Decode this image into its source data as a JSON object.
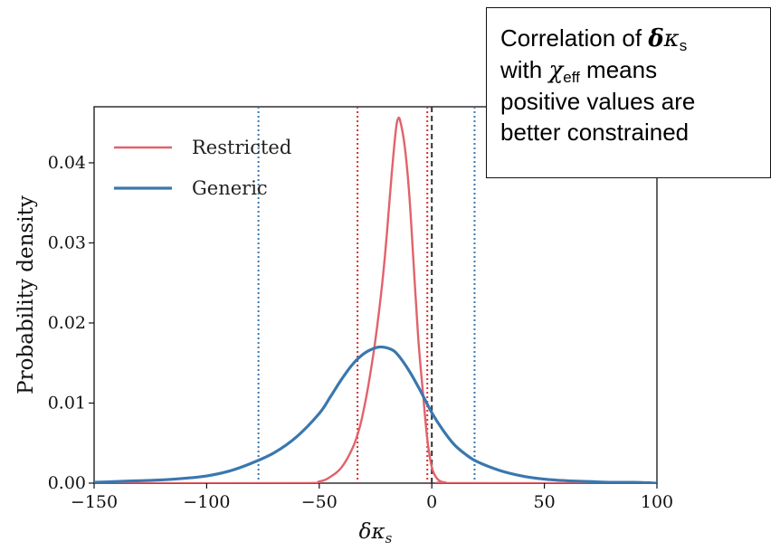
{
  "chart_data": {
    "type": "line",
    "xlabel": "δκ_s",
    "ylabel": "Probability density",
    "xlim": [
      -150,
      100
    ],
    "ylim": [
      0,
      0.047
    ],
    "x_ticks": [
      -150,
      -100,
      -50,
      0,
      50,
      100
    ],
    "x_tick_labels": [
      "−150",
      "−100",
      "−50",
      "0",
      "50",
      "100"
    ],
    "y_ticks": [
      0,
      0.01,
      0.02,
      0.03,
      0.04
    ],
    "y_tick_labels": [
      "0.00",
      "0.01",
      "0.02",
      "0.03",
      "0.04"
    ],
    "grid": false,
    "legend_position": "top-left",
    "colors": {
      "Restricted": "#e0636b",
      "Generic": "#3a77ae",
      "zero_line": "#333333"
    },
    "series": [
      {
        "name": "Restricted",
        "x": [
          -150,
          -60,
          -50,
          -45,
          -40,
          -35,
          -32,
          -30,
          -28,
          -25,
          -22,
          -20,
          -18,
          -16,
          -15,
          -14,
          -12,
          -10,
          -8,
          -6,
          -4,
          -2,
          0,
          2,
          4,
          6,
          10,
          100
        ],
        "y": [
          0,
          0,
          0.0002,
          0.0008,
          0.002,
          0.0045,
          0.007,
          0.0095,
          0.0125,
          0.018,
          0.025,
          0.031,
          0.038,
          0.044,
          0.0455,
          0.0452,
          0.042,
          0.036,
          0.027,
          0.018,
          0.0115,
          0.0055,
          0.002,
          0.0007,
          0.0002,
          0.0001,
          0,
          0
        ]
      },
      {
        "name": "Generic",
        "x": [
          -150,
          -140,
          -130,
          -120,
          -110,
          -100,
          -90,
          -80,
          -70,
          -60,
          -50,
          -45,
          -40,
          -35,
          -30,
          -25,
          -22,
          -18,
          -15,
          -10,
          -5,
          0,
          5,
          10,
          15,
          20,
          30,
          40,
          50,
          60,
          70,
          80,
          90,
          100
        ],
        "y": [
          0.0001,
          0.0002,
          0.0003,
          0.0004,
          0.0006,
          0.0009,
          0.0015,
          0.0025,
          0.0038,
          0.0058,
          0.0087,
          0.0108,
          0.013,
          0.0149,
          0.0162,
          0.0169,
          0.017,
          0.0167,
          0.016,
          0.014,
          0.0115,
          0.0088,
          0.0066,
          0.0048,
          0.0036,
          0.0027,
          0.0016,
          0.0009,
          0.0005,
          0.0003,
          0.0002,
          0.0001,
          0.0001,
          0
        ]
      }
    ],
    "vlines": [
      {
        "x": -77,
        "color": "#3a77ae",
        "style": "dotted"
      },
      {
        "x": 19,
        "color": "#3a77ae",
        "style": "dotted"
      },
      {
        "x": -33,
        "color": "#d6302f",
        "style": "dotted"
      },
      {
        "x": -2,
        "color": "#d6302f",
        "style": "dotted"
      },
      {
        "x": 0,
        "color": "#333333",
        "style": "dashed"
      }
    ]
  },
  "annotation": {
    "line1_text": "Correlation of ",
    "line1_bold_symbol": "δ",
    "line1_symbol": "κ",
    "line1_sub": "s",
    "line2_text": "with ",
    "line2_symbol": "χ",
    "line2_sub": "eff",
    "line2_rest": " means",
    "line3": "positive values are",
    "line4": "better constrained"
  }
}
